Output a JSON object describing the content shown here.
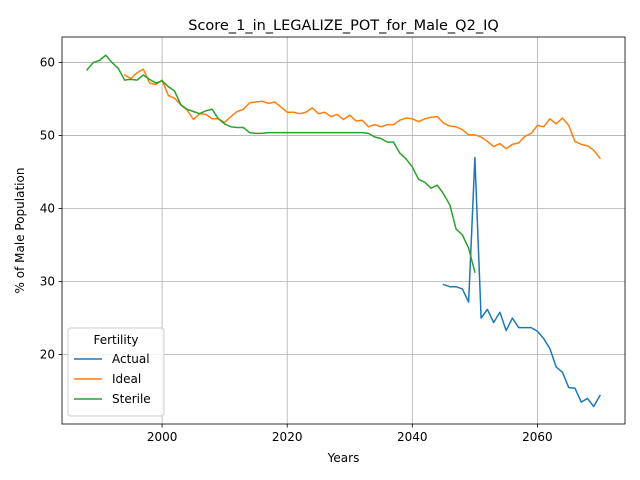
{
  "chart_data": {
    "type": "line",
    "title": "Score_1_in_LEGALIZE_POT_for_Male_Q2_IQ",
    "xlabel": "Years",
    "ylabel": "% of Male Population",
    "xlim": [
      1984,
      2074
    ],
    "ylim": [
      10.5,
      63.5
    ],
    "x_ticks": [
      2000,
      2020,
      2040,
      2060
    ],
    "y_ticks": [
      20,
      30,
      40,
      50,
      60
    ],
    "grid": true,
    "legend": {
      "title": "Fertility",
      "placement": "lower-left"
    },
    "series": [
      {
        "name": "Actual",
        "color": "#1f77b4",
        "x": [
          2045,
          2046,
          2047,
          2048,
          2049,
          2049.5,
          2050,
          2051,
          2052,
          2053,
          2054,
          2055,
          2056,
          2057,
          2058,
          2059,
          2060,
          2061,
          2062,
          2063,
          2064,
          2065,
          2066,
          2067,
          2068,
          2069,
          2070
        ],
        "y": [
          29.6,
          29.3,
          29.3,
          29.0,
          27.2,
          37.0,
          47.0,
          25.0,
          26.2,
          24.4,
          25.8,
          23.3,
          25.0,
          23.7,
          23.7,
          23.7,
          23.2,
          22.2,
          20.8,
          18.3,
          17.6,
          15.5,
          15.4,
          13.5,
          14.0,
          12.9,
          14.4
        ]
      },
      {
        "name": "Ideal",
        "color": "#ff7f0e",
        "x": [
          1994,
          1995,
          1996,
          1997,
          1998,
          1999,
          2000,
          2001,
          2002,
          2003,
          2004,
          2005,
          2006,
          2007,
          2008,
          2009,
          2010,
          2011,
          2012,
          2013,
          2014,
          2015,
          2016,
          2017,
          2018,
          2019,
          2020,
          2021,
          2022,
          2023,
          2024,
          2025,
          2026,
          2027,
          2028,
          2029,
          2030,
          2031,
          2032,
          2033,
          2034,
          2035,
          2036,
          2037,
          2038,
          2039,
          2040,
          2041,
          2042,
          2043,
          2044,
          2045,
          2046,
          2047,
          2048,
          2049,
          2050,
          2051,
          2052,
          2053,
          2054,
          2055,
          2056,
          2057,
          2058,
          2059,
          2060,
          2061,
          2062,
          2063,
          2064,
          2065,
          2066,
          2067,
          2068,
          2069,
          2070
        ],
        "y": [
          58.3,
          57.8,
          58.6,
          59.1,
          57.2,
          57.0,
          57.6,
          55.5,
          55.1,
          54.2,
          53.5,
          52.2,
          53.0,
          52.9,
          52.3,
          52.3,
          51.8,
          52.6,
          53.3,
          53.6,
          54.5,
          54.6,
          54.7,
          54.4,
          54.6,
          53.9,
          53.2,
          53.2,
          53.0,
          53.2,
          53.8,
          53.0,
          53.2,
          52.6,
          52.9,
          52.2,
          52.8,
          52.0,
          52.1,
          51.2,
          51.5,
          51.2,
          51.5,
          51.5,
          52.1,
          52.4,
          52.3,
          51.9,
          52.3,
          52.5,
          52.6,
          51.7,
          51.3,
          51.2,
          50.8,
          50.1,
          50.1,
          49.8,
          49.2,
          48.5,
          48.9,
          48.2,
          48.8,
          49.0,
          49.9,
          50.3,
          51.4,
          51.2,
          52.3,
          51.6,
          52.4,
          51.4,
          49.2,
          48.8,
          48.6,
          48.0,
          46.9
        ]
      },
      {
        "name": "Sterile",
        "color": "#2ca02c",
        "x": [
          1988,
          1989,
          1990,
          1991,
          1992,
          1993,
          1994,
          1995,
          1996,
          1997,
          1998,
          1999,
          2000,
          2001,
          2002,
          2003,
          2004,
          2005,
          2006,
          2007,
          2008,
          2009,
          2010,
          2011,
          2012,
          2013,
          2014,
          2015,
          2016,
          2017,
          2018,
          2019,
          2020,
          2021,
          2022,
          2023,
          2024,
          2025,
          2026,
          2027,
          2028,
          2029,
          2030,
          2031,
          2032,
          2033,
          2034,
          2035,
          2036,
          2037,
          2038,
          2039,
          2040,
          2041,
          2042,
          2043,
          2044,
          2045,
          2046,
          2047,
          2048,
          2049,
          2050
        ],
        "y": [
          59.0,
          60.0,
          60.3,
          61.0,
          60.0,
          59.2,
          57.6,
          57.7,
          57.6,
          58.3,
          57.7,
          57.2,
          57.5,
          56.7,
          56.1,
          54.2,
          53.6,
          53.3,
          53.0,
          53.4,
          53.6,
          52.3,
          51.6,
          51.2,
          51.1,
          51.1,
          50.4,
          50.3,
          50.3,
          50.4,
          50.4,
          50.4,
          50.4,
          50.4,
          50.4,
          50.4,
          50.4,
          50.4,
          50.4,
          50.4,
          50.4,
          50.4,
          50.4,
          50.4,
          50.4,
          50.3,
          49.8,
          49.6,
          49.1,
          49.1,
          47.6,
          46.8,
          45.7,
          44.0,
          43.6,
          42.8,
          43.2,
          42.0,
          40.5,
          37.2,
          36.4,
          34.6,
          31.3
        ]
      }
    ]
  }
}
